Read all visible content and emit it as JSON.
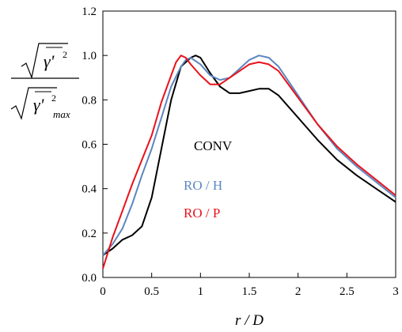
{
  "chart_data": {
    "type": "line",
    "xlabel": "r / D",
    "ylabel": {
      "numerator": "γ'",
      "denominator": "γ'",
      "denominator_subscript": "max"
    },
    "xlim": [
      0,
      3
    ],
    "ylim": [
      0,
      1.2
    ],
    "x_ticks": [
      "0",
      "0.5",
      "1",
      "1.5",
      "2",
      "2.5",
      "3"
    ],
    "y_ticks": [
      "0.0",
      "0.2",
      "0.4",
      "0.6",
      "0.8",
      "1.0",
      "1.2"
    ],
    "grid": false,
    "legend_position": "center",
    "series": [
      {
        "name": "CONV",
        "color": "#000000",
        "points": [
          [
            0.0,
            0.1
          ],
          [
            0.1,
            0.13
          ],
          [
            0.2,
            0.17
          ],
          [
            0.3,
            0.19
          ],
          [
            0.4,
            0.23
          ],
          [
            0.5,
            0.36
          ],
          [
            0.6,
            0.58
          ],
          [
            0.7,
            0.8
          ],
          [
            0.8,
            0.95
          ],
          [
            0.9,
            0.99
          ],
          [
            0.95,
            1.0
          ],
          [
            1.0,
            0.99
          ],
          [
            1.1,
            0.92
          ],
          [
            1.2,
            0.86
          ],
          [
            1.3,
            0.83
          ],
          [
            1.4,
            0.83
          ],
          [
            1.5,
            0.84
          ],
          [
            1.6,
            0.85
          ],
          [
            1.7,
            0.85
          ],
          [
            1.8,
            0.82
          ],
          [
            2.0,
            0.72
          ],
          [
            2.2,
            0.62
          ],
          [
            2.4,
            0.53
          ],
          [
            2.6,
            0.46
          ],
          [
            2.8,
            0.4
          ],
          [
            3.0,
            0.34
          ]
        ]
      },
      {
        "name": "RO / H",
        "color": "#5b86c0",
        "points": [
          [
            0.0,
            0.1
          ],
          [
            0.1,
            0.15
          ],
          [
            0.2,
            0.22
          ],
          [
            0.3,
            0.33
          ],
          [
            0.4,
            0.46
          ],
          [
            0.5,
            0.58
          ],
          [
            0.6,
            0.72
          ],
          [
            0.7,
            0.86
          ],
          [
            0.8,
            0.95
          ],
          [
            0.85,
            0.98
          ],
          [
            0.9,
            0.99
          ],
          [
            1.0,
            0.96
          ],
          [
            1.1,
            0.91
          ],
          [
            1.2,
            0.89
          ],
          [
            1.3,
            0.9
          ],
          [
            1.4,
            0.94
          ],
          [
            1.5,
            0.98
          ],
          [
            1.6,
            1.0
          ],
          [
            1.7,
            0.99
          ],
          [
            1.8,
            0.95
          ],
          [
            2.0,
            0.82
          ],
          [
            2.2,
            0.69
          ],
          [
            2.4,
            0.58
          ],
          [
            2.6,
            0.5
          ],
          [
            2.8,
            0.43
          ],
          [
            3.0,
            0.36
          ]
        ]
      },
      {
        "name": "RO / P",
        "color": "#e8121b",
        "points": [
          [
            0.0,
            0.04
          ],
          [
            0.1,
            0.18
          ],
          [
            0.2,
            0.3
          ],
          [
            0.3,
            0.42
          ],
          [
            0.4,
            0.53
          ],
          [
            0.5,
            0.64
          ],
          [
            0.6,
            0.79
          ],
          [
            0.7,
            0.91
          ],
          [
            0.75,
            0.97
          ],
          [
            0.8,
            1.0
          ],
          [
            0.85,
            0.99
          ],
          [
            0.9,
            0.96
          ],
          [
            1.0,
            0.91
          ],
          [
            1.1,
            0.87
          ],
          [
            1.2,
            0.87
          ],
          [
            1.3,
            0.9
          ],
          [
            1.4,
            0.93
          ],
          [
            1.5,
            0.96
          ],
          [
            1.6,
            0.97
          ],
          [
            1.7,
            0.96
          ],
          [
            1.8,
            0.93
          ],
          [
            2.0,
            0.81
          ],
          [
            2.2,
            0.69
          ],
          [
            2.4,
            0.59
          ],
          [
            2.6,
            0.51
          ],
          [
            2.8,
            0.44
          ],
          [
            3.0,
            0.37
          ]
        ]
      }
    ]
  }
}
